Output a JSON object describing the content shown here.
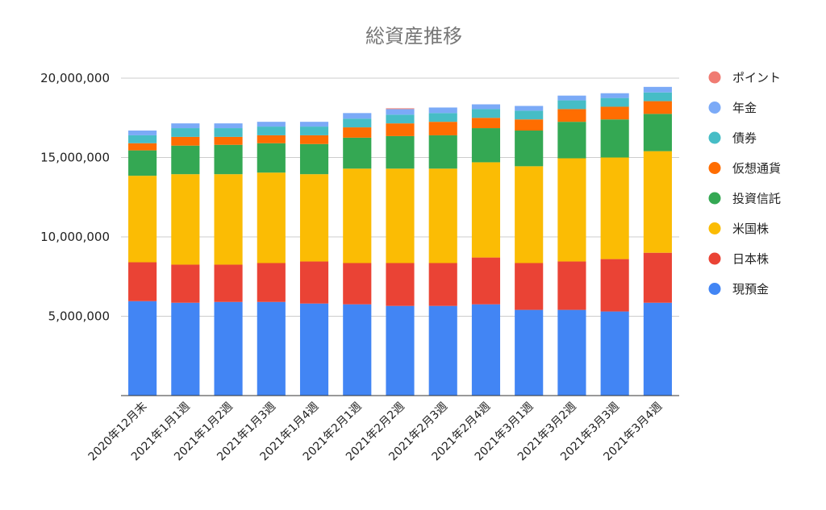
{
  "chart_data": {
    "type": "bar",
    "stacked": true,
    "title": "総資産推移",
    "xlabel": "",
    "ylabel": "",
    "ylim": [
      0,
      20000000
    ],
    "yticks": [
      5000000,
      10000000,
      15000000,
      20000000
    ],
    "ytick_labels": [
      "5,000,000",
      "10,000,000",
      "15,000,000",
      "20,000,000"
    ],
    "grid": true,
    "legend_position": "right",
    "categories": [
      "2020年12月末",
      "2021年1月1週",
      "2021年1月2週",
      "2021年1月3週",
      "2021年1月4週",
      "2021年2月1週",
      "2021年2月2週",
      "2021年2月3週",
      "2021年2月4週",
      "2021年3月1週",
      "2021年3月2週",
      "2021年3月3週",
      "2021年3月4週"
    ],
    "series": [
      {
        "name": "現預金",
        "color": "#4285f4",
        "values": [
          5950000,
          5850000,
          5900000,
          5900000,
          5800000,
          5750000,
          5650000,
          5650000,
          5750000,
          5400000,
          5400000,
          5300000,
          5850000
        ]
      },
      {
        "name": "日本株",
        "color": "#ea4335",
        "values": [
          2450000,
          2400000,
          2350000,
          2450000,
          2650000,
          2600000,
          2700000,
          2700000,
          2950000,
          2950000,
          3050000,
          3300000,
          3150000
        ]
      },
      {
        "name": "米国株",
        "color": "#fbbc04",
        "values": [
          5450000,
          5700000,
          5700000,
          5700000,
          5500000,
          5950000,
          5950000,
          5950000,
          6000000,
          6100000,
          6500000,
          6400000,
          6400000
        ]
      },
      {
        "name": "投資信託",
        "color": "#34a853",
        "values": [
          1600000,
          1800000,
          1850000,
          1850000,
          1900000,
          1950000,
          2050000,
          2100000,
          2150000,
          2250000,
          2300000,
          2400000,
          2350000
        ]
      },
      {
        "name": "仮想通貨",
        "color": "#ff6d01",
        "values": [
          450000,
          550000,
          500000,
          500000,
          550000,
          650000,
          800000,
          850000,
          650000,
          700000,
          800000,
          800000,
          800000
        ]
      },
      {
        "name": "債券",
        "color": "#46bdc6",
        "values": [
          500000,
          550000,
          550000,
          550000,
          550000,
          550000,
          550000,
          550000,
          550000,
          550000,
          550000,
          550000,
          550000
        ]
      },
      {
        "name": "年金",
        "color": "#7baaf7",
        "values": [
          300000,
          300000,
          300000,
          300000,
          300000,
          350000,
          350000,
          350000,
          300000,
          300000,
          300000,
          300000,
          350000
        ]
      },
      {
        "name": "ポイント",
        "color": "#f07b72",
        "values": [
          0,
          0,
          0,
          0,
          0,
          0,
          50000,
          0,
          0,
          0,
          0,
          0,
          0
        ]
      }
    ]
  }
}
